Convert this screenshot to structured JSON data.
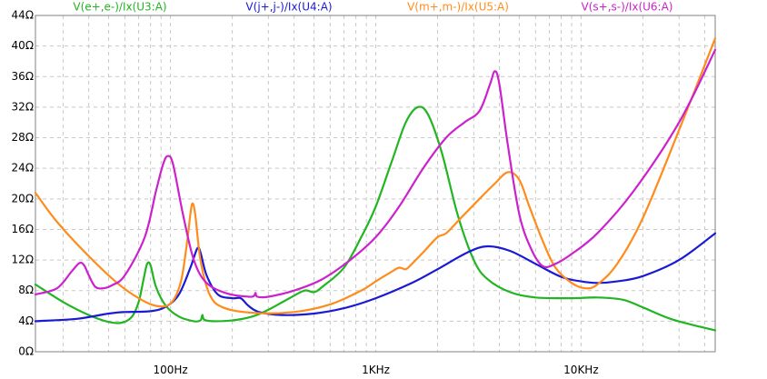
{
  "chart_data": {
    "type": "line",
    "x_scale": "log",
    "xlim": [
      22,
      45000
    ],
    "ylim": [
      0,
      44
    ],
    "grid": true,
    "y_ticks": [
      {
        "value": 0,
        "label": "0Ω"
      },
      {
        "value": 4,
        "label": "4Ω"
      },
      {
        "value": 8,
        "label": "8Ω"
      },
      {
        "value": 12,
        "label": "12Ω"
      },
      {
        "value": 16,
        "label": "16Ω"
      },
      {
        "value": 20,
        "label": "20Ω"
      },
      {
        "value": 24,
        "label": "24Ω"
      },
      {
        "value": 28,
        "label": "28Ω"
      },
      {
        "value": 32,
        "label": "32Ω"
      },
      {
        "value": 36,
        "label": "36Ω"
      },
      {
        "value": 40,
        "label": "40Ω"
      },
      {
        "value": 44,
        "label": "44Ω"
      }
    ],
    "x_ticks": [
      {
        "value": 100,
        "label": "100Hz"
      },
      {
        "value": 1000,
        "label": "1KHz"
      },
      {
        "value": 10000,
        "label": "10KHz"
      }
    ],
    "series": [
      {
        "name": "V(e+,e-)/Ix(U3:A)",
        "color": "#22b522",
        "points": [
          [
            22,
            8.8
          ],
          [
            30,
            6.5
          ],
          [
            40,
            4.8
          ],
          [
            50,
            3.9
          ],
          [
            58,
            3.8
          ],
          [
            65,
            4.6
          ],
          [
            70,
            6.5
          ],
          [
            74,
            9.5
          ],
          [
            77,
            11.5
          ],
          [
            80,
            11.3
          ],
          [
            85,
            8.5
          ],
          [
            95,
            6
          ],
          [
            110,
            4.6
          ],
          [
            130,
            4
          ],
          [
            140,
            4.1
          ],
          [
            143,
            4.8
          ],
          [
            146,
            4.2
          ],
          [
            160,
            4
          ],
          [
            200,
            4.1
          ],
          [
            250,
            4.6
          ],
          [
            300,
            5.5
          ],
          [
            380,
            7
          ],
          [
            450,
            8
          ],
          [
            500,
            7.8
          ],
          [
            550,
            8.5
          ],
          [
            700,
            11
          ],
          [
            850,
            15
          ],
          [
            1000,
            19
          ],
          [
            1200,
            25
          ],
          [
            1400,
            30
          ],
          [
            1600,
            32
          ],
          [
            1800,
            31
          ],
          [
            2100,
            26
          ],
          [
            2500,
            18
          ],
          [
            3000,
            12
          ],
          [
            3500,
            9.5
          ],
          [
            4500,
            7.8
          ],
          [
            6000,
            7.1
          ],
          [
            9000,
            7
          ],
          [
            12000,
            7.1
          ],
          [
            16000,
            6.8
          ],
          [
            20000,
            5.8
          ],
          [
            28000,
            4.2
          ],
          [
            45000,
            2.8
          ]
        ]
      },
      {
        "name": "V(j+,j-)/Ix(U4:A)",
        "color": "#1a1ad4",
        "points": [
          [
            22,
            4
          ],
          [
            35,
            4.3
          ],
          [
            50,
            5.0
          ],
          [
            60,
            5.2
          ],
          [
            80,
            5.3
          ],
          [
            95,
            5.9
          ],
          [
            110,
            7.5
          ],
          [
            125,
            11
          ],
          [
            135,
            13.5
          ],
          [
            140,
            13
          ],
          [
            150,
            10
          ],
          [
            170,
            7.5
          ],
          [
            200,
            7
          ],
          [
            220,
            7
          ],
          [
            240,
            6
          ],
          [
            270,
            5.2
          ],
          [
            350,
            4.8
          ],
          [
            500,
            5
          ],
          [
            700,
            5.7
          ],
          [
            1000,
            7
          ],
          [
            1500,
            9
          ],
          [
            2000,
            10.8
          ],
          [
            2800,
            13
          ],
          [
            3500,
            13.8
          ],
          [
            4500,
            13.2
          ],
          [
            6000,
            11.5
          ],
          [
            8000,
            9.8
          ],
          [
            10000,
            9.2
          ],
          [
            12000,
            9
          ],
          [
            15000,
            9.2
          ],
          [
            20000,
            9.9
          ],
          [
            30000,
            12
          ],
          [
            45000,
            15.5
          ]
        ]
      },
      {
        "name": "V(m+,m-)/Ix(U5:A)",
        "color": "#ff8c1a",
        "points": [
          [
            22,
            20.8
          ],
          [
            28,
            17
          ],
          [
            40,
            12.5
          ],
          [
            55,
            9
          ],
          [
            70,
            7
          ],
          [
            85,
            6
          ],
          [
            100,
            6.3
          ],
          [
            112,
            9
          ],
          [
            120,
            14
          ],
          [
            125,
            18
          ],
          [
            128,
            19.4
          ],
          [
            132,
            18
          ],
          [
            140,
            12
          ],
          [
            155,
            7.5
          ],
          [
            180,
            5.8
          ],
          [
            250,
            5.1
          ],
          [
            400,
            5.2
          ],
          [
            600,
            6.2
          ],
          [
            850,
            8
          ],
          [
            1000,
            9.2
          ],
          [
            1200,
            10.5
          ],
          [
            1300,
            11
          ],
          [
            1400,
            10.8
          ],
          [
            1500,
            11.5
          ],
          [
            1700,
            13
          ],
          [
            2000,
            15
          ],
          [
            2200,
            15.5
          ],
          [
            2600,
            17.5
          ],
          [
            3200,
            20
          ],
          [
            3800,
            22
          ],
          [
            4400,
            23.5
          ],
          [
            5000,
            22.5
          ],
          [
            5600,
            19
          ],
          [
            6500,
            14.5
          ],
          [
            7500,
            11
          ],
          [
            9000,
            9
          ],
          [
            10500,
            8.3
          ],
          [
            12000,
            8.8
          ],
          [
            15000,
            11.5
          ],
          [
            20000,
            17.5
          ],
          [
            30000,
            29
          ],
          [
            45000,
            41
          ]
        ]
      },
      {
        "name": "V(s+,s-)/Ix(U6:A)",
        "color": "#cc22cc",
        "points": [
          [
            22,
            7.5
          ],
          [
            28,
            8.3
          ],
          [
            33,
            10.5
          ],
          [
            36,
            11.6
          ],
          [
            38,
            11.3
          ],
          [
            40,
            10
          ],
          [
            43,
            8.5
          ],
          [
            47,
            8.3
          ],
          [
            52,
            8.7
          ],
          [
            60,
            10
          ],
          [
            75,
            15
          ],
          [
            85,
            21
          ],
          [
            92,
            24.5
          ],
          [
            97,
            25.6
          ],
          [
            103,
            24.5
          ],
          [
            115,
            18
          ],
          [
            130,
            12
          ],
          [
            150,
            9
          ],
          [
            190,
            7.6
          ],
          [
            240,
            7.2
          ],
          [
            255,
            7.3
          ],
          [
            260,
            7.7
          ],
          [
            265,
            7.2
          ],
          [
            300,
            7.2
          ],
          [
            400,
            8
          ],
          [
            550,
            9.5
          ],
          [
            750,
            12
          ],
          [
            1000,
            15
          ],
          [
            1300,
            19
          ],
          [
            1700,
            24
          ],
          [
            2200,
            28
          ],
          [
            2700,
            30
          ],
          [
            3200,
            31.5
          ],
          [
            3600,
            35
          ],
          [
            3800,
            36.7
          ],
          [
            4000,
            35
          ],
          [
            4400,
            27
          ],
          [
            5000,
            18
          ],
          [
            5700,
            13.5
          ],
          [
            6500,
            11.2
          ],
          [
            7500,
            11.5
          ],
          [
            9000,
            12.8
          ],
          [
            12000,
            15.5
          ],
          [
            18000,
            21
          ],
          [
            30000,
            30
          ],
          [
            45000,
            39.5
          ]
        ]
      }
    ]
  }
}
